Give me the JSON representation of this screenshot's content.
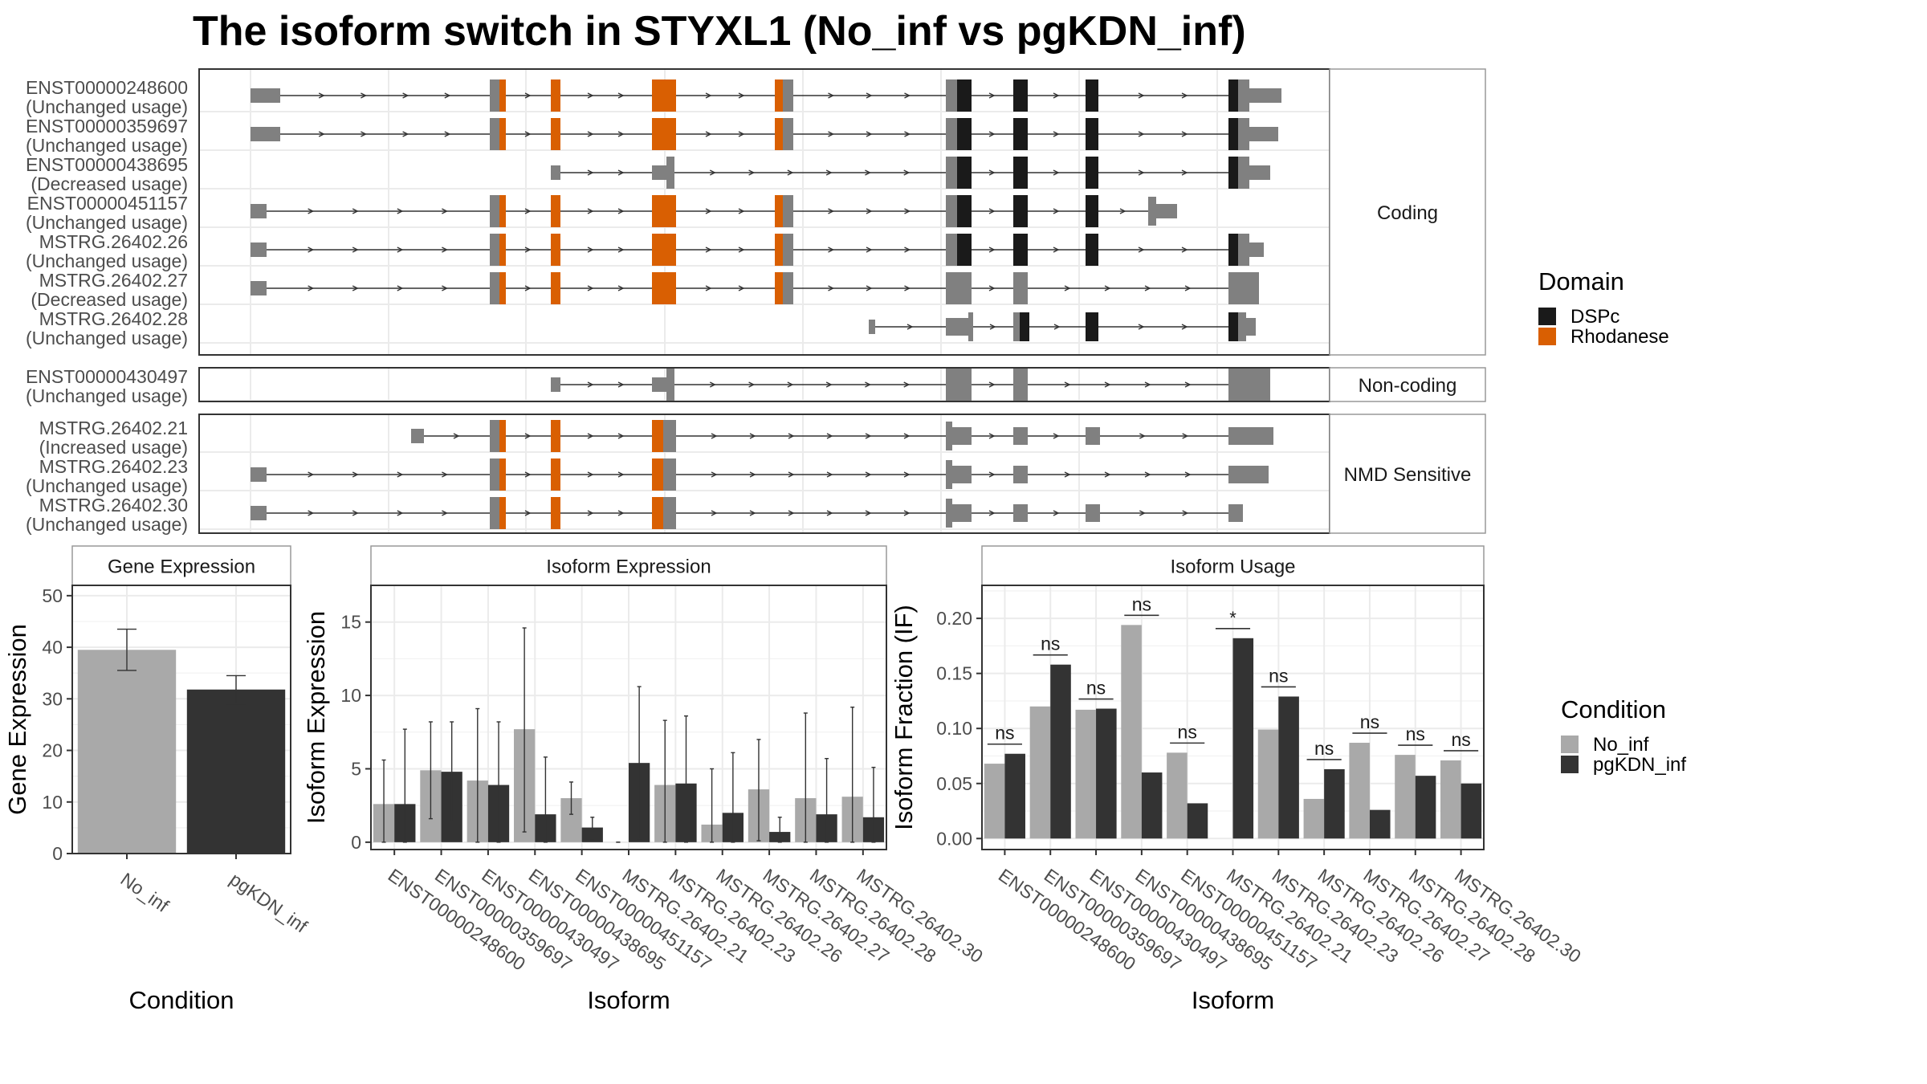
{
  "title": "The isoform switch in STYXL1 (No_inf vs pgKDN_inf)",
  "colors": {
    "DSPc": "#1a1a1a",
    "Rhodanese": "#d95f02",
    "exon": "#808080",
    "No_inf": "#a9a9a9",
    "pgKDN_inf": "#333333"
  },
  "domain_legend": {
    "title": "Domain",
    "items": [
      {
        "label": "DSPc",
        "color": "#1a1a1a"
      },
      {
        "label": "Rhodanese",
        "color": "#d95f02"
      }
    ]
  },
  "condition_legend": {
    "title": "Condition",
    "items": [
      {
        "label": "No_inf",
        "color": "#a9a9a9"
      },
      {
        "label": "pgKDN_inf",
        "color": "#333333"
      }
    ]
  },
  "transcript_panels": [
    {
      "label": "Coding",
      "transcripts": [
        {
          "id": "ENST00000248600",
          "usage": "(Unchanged usage)"
        },
        {
          "id": "ENST00000359697",
          "usage": "(Unchanged usage)"
        },
        {
          "id": "ENST00000438695",
          "usage": "(Decreased usage)"
        },
        {
          "id": "ENST00000451157",
          "usage": "(Unchanged usage)"
        },
        {
          "id": "MSTRG.26402.26",
          "usage": "(Unchanged usage)"
        },
        {
          "id": "MSTRG.26402.27",
          "usage": "(Decreased usage)"
        },
        {
          "id": "MSTRG.26402.28",
          "usage": "(Unchanged usage)"
        }
      ]
    },
    {
      "label": "Non-coding",
      "transcripts": [
        {
          "id": "ENST00000430497",
          "usage": "(Unchanged usage)"
        }
      ]
    },
    {
      "label": "NMD Sensitive",
      "transcripts": [
        {
          "id": "MSTRG.26402.21",
          "usage": "(Increased usage)"
        },
        {
          "id": "MSTRG.26402.23",
          "usage": "(Unchanged usage)"
        },
        {
          "id": "MSTRG.26402.30",
          "usage": "(Unchanged usage)"
        }
      ]
    }
  ],
  "chart_data": [
    {
      "type": "bar",
      "title": "Gene Expression",
      "xlabel": "Condition",
      "ylabel": "Gene Expression",
      "ylim": [
        0,
        52
      ],
      "yticks": [
        0,
        10,
        20,
        30,
        40,
        50
      ],
      "categories": [
        "No_inf",
        "pgKDN_inf"
      ],
      "values": [
        39.5,
        31.8
      ],
      "errors": [
        [
          35.5,
          43.5
        ],
        [
          29.0,
          34.5
        ]
      ]
    },
    {
      "type": "bar",
      "title": "Isoform Expression",
      "xlabel": "Isoform",
      "ylabel": "Isoform Expression",
      "ylim": [
        -0.5,
        17.5
      ],
      "yticks": [
        0,
        5,
        10,
        15
      ],
      "categories": [
        "ENST00000248600",
        "ENST00000359697",
        "ENST00000430497",
        "ENST00000438695",
        "ENST00000451157",
        "MSTRG.26402.21",
        "MSTRG.26402.23",
        "MSTRG.26402.26",
        "MSTRG.26402.27",
        "MSTRG.26402.28",
        "MSTRG.26402.30"
      ],
      "series": [
        {
          "name": "No_inf",
          "values": [
            2.6,
            4.9,
            4.2,
            7.7,
            3.0,
            0.0,
            3.9,
            1.2,
            3.6,
            3.0,
            3.1
          ],
          "errors": [
            [
              0,
              5.6
            ],
            [
              1.6,
              8.2
            ],
            [
              0,
              9.1
            ],
            [
              0.7,
              14.6
            ],
            [
              1.9,
              4.1
            ],
            [
              0,
              0
            ],
            [
              0,
              8.3
            ],
            [
              0,
              5.0
            ],
            [
              0.1,
              7.0
            ],
            [
              0,
              8.8
            ],
            [
              0,
              9.2
            ]
          ]
        },
        {
          "name": "pgKDN_inf",
          "values": [
            2.6,
            4.8,
            3.9,
            1.9,
            1.0,
            5.4,
            4.0,
            2.0,
            0.7,
            1.9,
            1.7
          ],
          "errors": [
            [
              0,
              7.7
            ],
            [
              1.4,
              8.2
            ],
            [
              0,
              8.2
            ],
            [
              0,
              5.8
            ],
            [
              0.2,
              1.7
            ],
            [
              0.2,
              10.6
            ],
            [
              0,
              8.6
            ],
            [
              0,
              6.1
            ],
            [
              0,
              1.7
            ],
            [
              0,
              5.7
            ],
            [
              0,
              5.1
            ]
          ]
        }
      ]
    },
    {
      "type": "bar",
      "title": "Isoform Usage",
      "xlabel": "Isoform",
      "ylabel": "Isoform Fraction (IF)",
      "ylim": [
        -0.01,
        0.23
      ],
      "yticks": [
        0.0,
        0.05,
        0.1,
        0.15,
        0.2
      ],
      "ytick_labels": [
        "0.00",
        "0.05",
        "0.10",
        "0.15",
        "0.20"
      ],
      "categories": [
        "ENST00000248600",
        "ENST00000359697",
        "ENST00000430497",
        "ENST00000438695",
        "ENST00000451157",
        "MSTRG.26402.21",
        "MSTRG.26402.23",
        "MSTRG.26402.26",
        "MSTRG.26402.27",
        "MSTRG.26402.28",
        "MSTRG.26402.30"
      ],
      "series": [
        {
          "name": "No_inf",
          "values": [
            0.068,
            0.12,
            0.117,
            0.194,
            0.078,
            0.0,
            0.099,
            0.036,
            0.087,
            0.076,
            0.071
          ]
        },
        {
          "name": "pgKDN_inf",
          "values": [
            0.077,
            0.158,
            0.118,
            0.06,
            0.032,
            0.182,
            0.129,
            0.063,
            0.026,
            0.057,
            0.05
          ]
        }
      ],
      "significance": [
        "ns",
        "ns",
        "ns",
        "ns",
        "ns",
        "*",
        "ns",
        "ns",
        "ns",
        "ns",
        "ns"
      ]
    }
  ]
}
